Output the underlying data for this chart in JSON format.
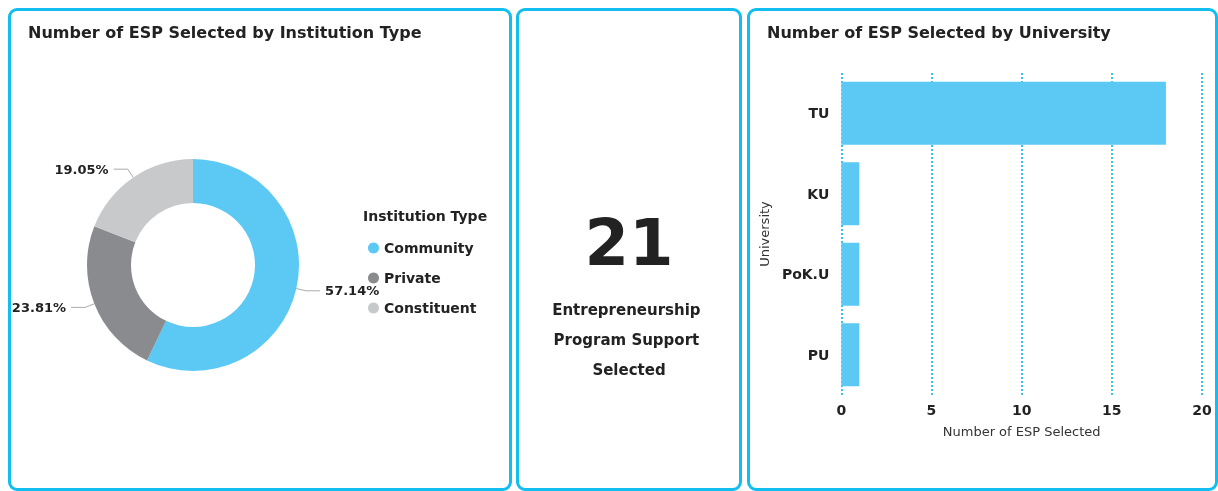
{
  "chart_data": [
    {
      "type": "donut",
      "title": "Number of ESP Selected by Institution Type",
      "legend_title": "Institution Type",
      "categories": [
        "Community",
        "Private",
        "Constituent"
      ],
      "values": [
        57.14,
        23.81,
        19.05
      ],
      "colors": [
        "#5bc9f3",
        "#8a8b8e",
        "#c8c9cb"
      ],
      "value_labels": [
        "57.14%",
        "23.81%",
        "19.05%"
      ],
      "legend": "right"
    },
    {
      "type": "other",
      "annotations": [
        "21",
        "Entrepreneurship Program Support Selected"
      ]
    },
    {
      "type": "bar",
      "orientation": "horizontal",
      "title": "Number of ESP Selected by University",
      "xlabel": "Number of ESP Selected",
      "ylabel": "University",
      "categories": [
        "TU",
        "KU",
        "PoK.U",
        "PU"
      ],
      "values": [
        18,
        1,
        1,
        1
      ],
      "color": "#5bc9f3",
      "xlim": [
        0,
        20
      ],
      "xticks": [
        0,
        5,
        10,
        15,
        20
      ],
      "grid": "x"
    }
  ]
}
